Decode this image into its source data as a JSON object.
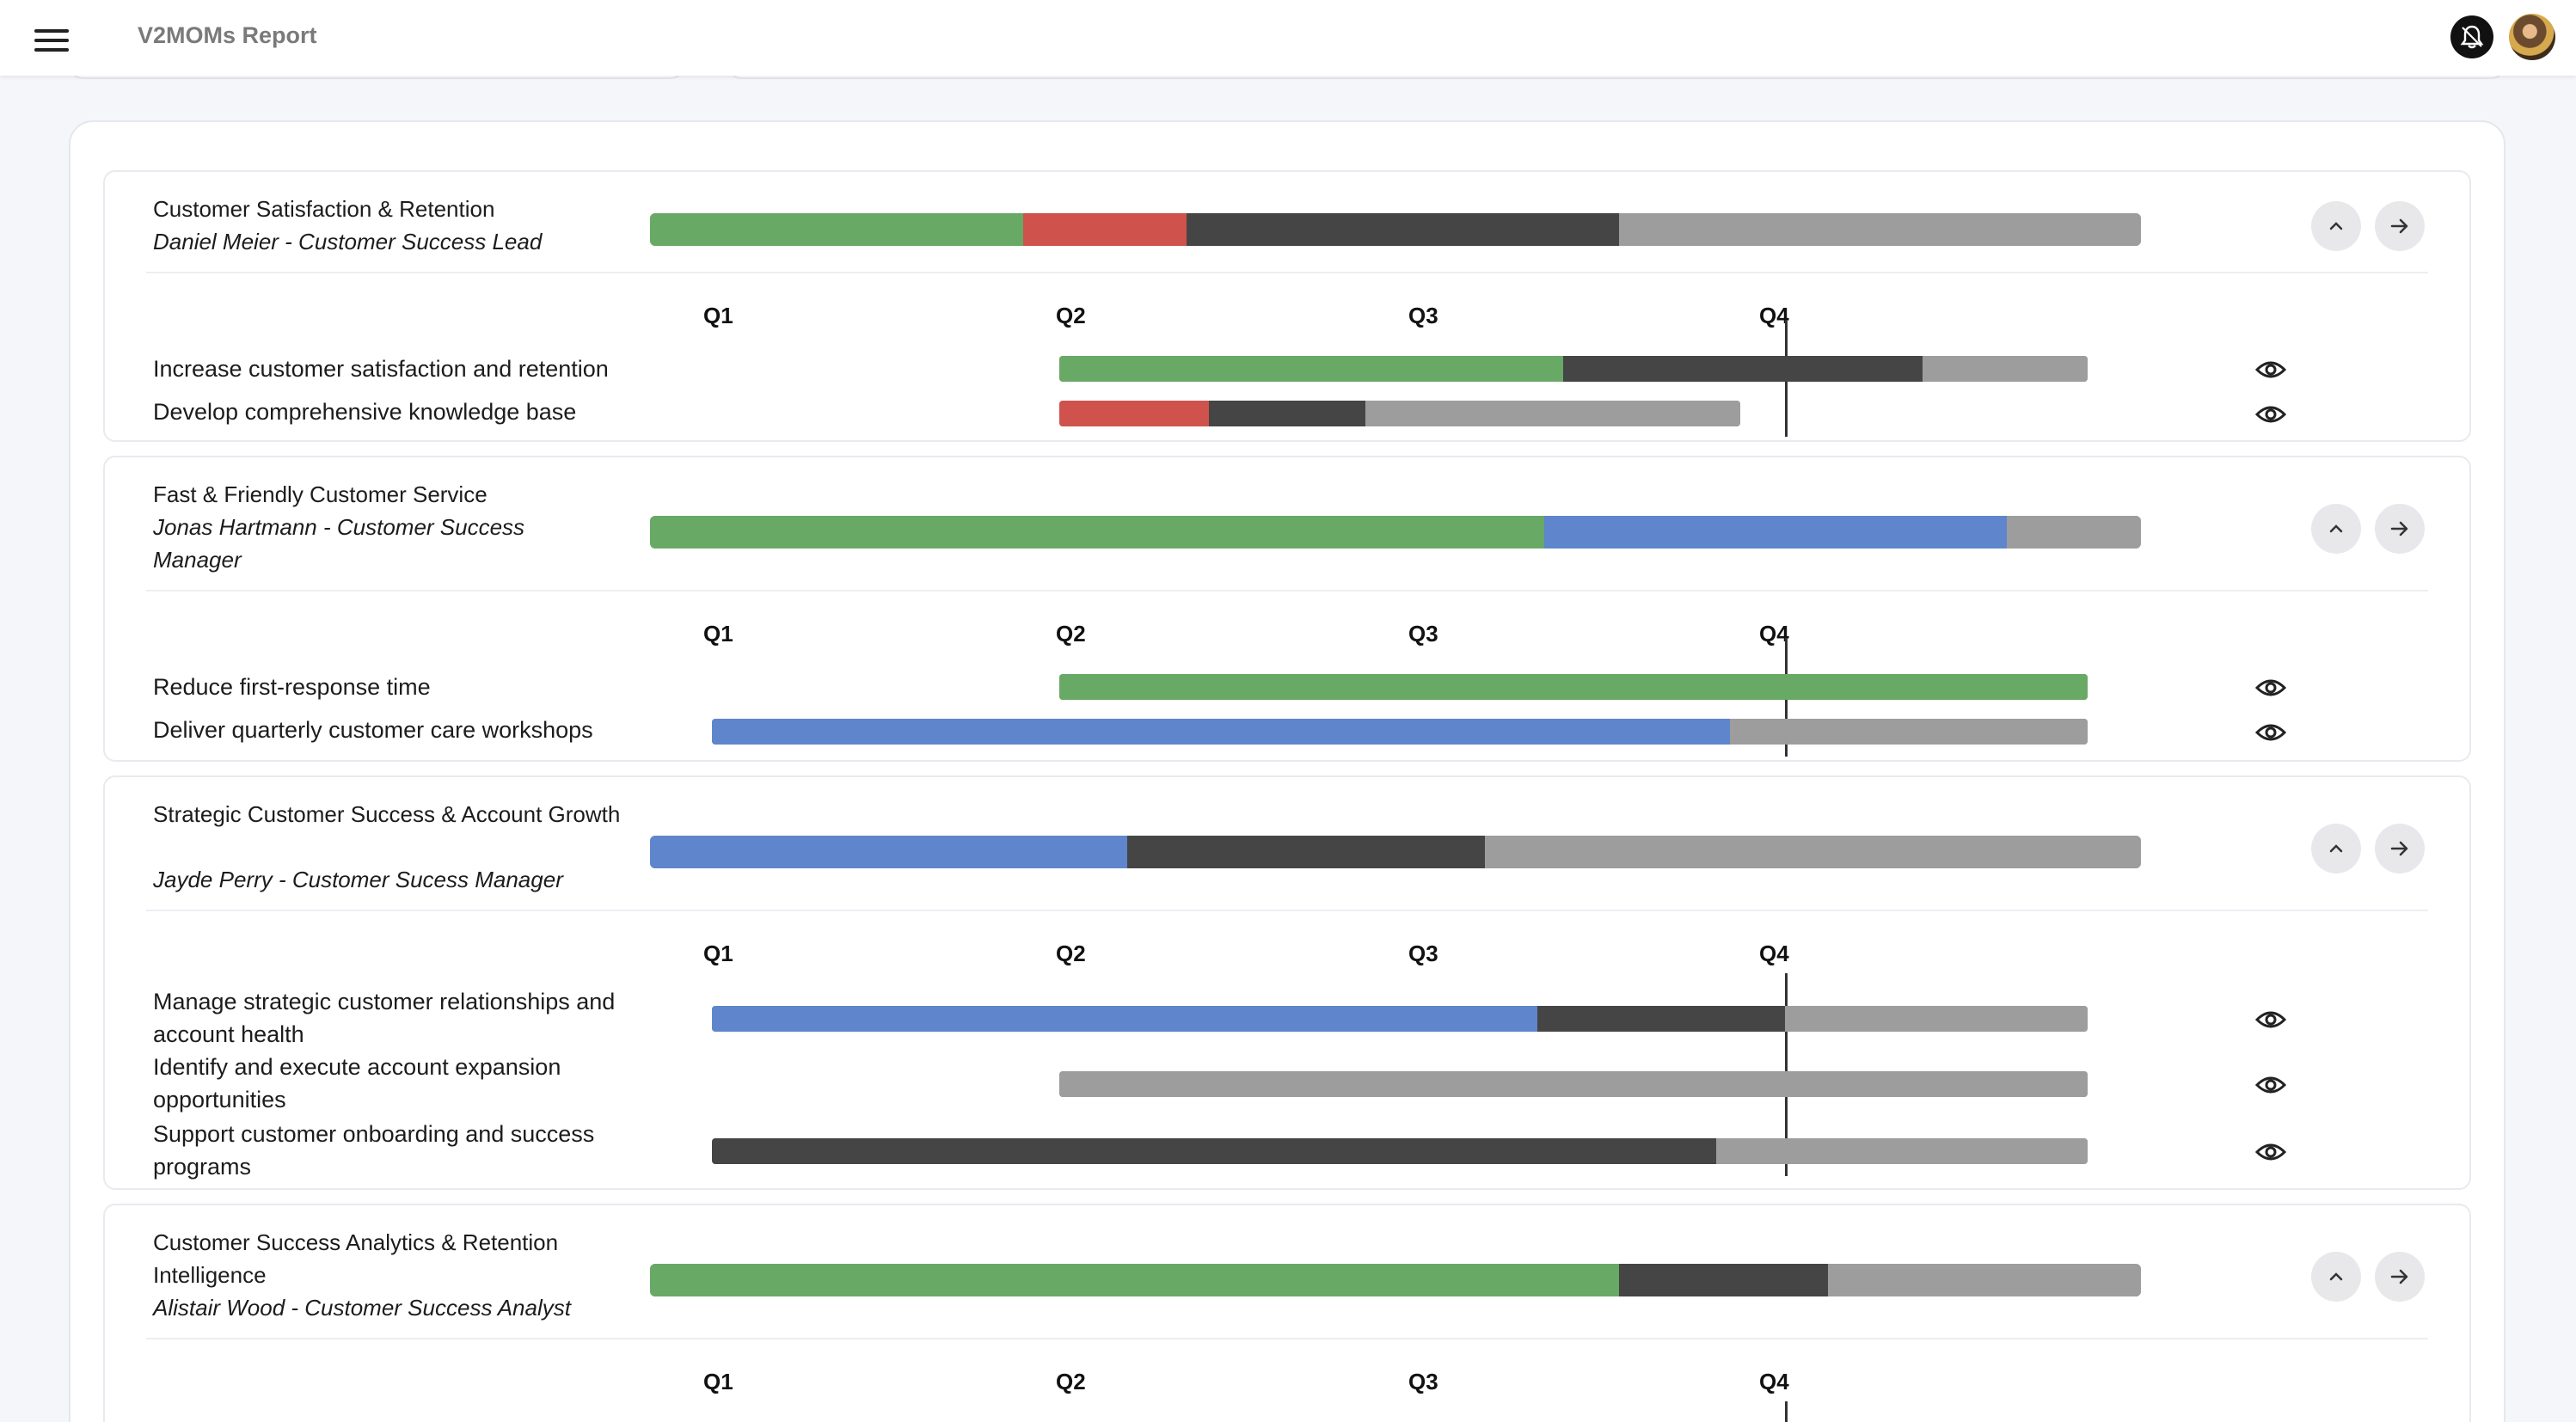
{
  "header": {
    "title": "V2MOMs Report",
    "menu_icon": "hamburger-menu-icon",
    "notification_icon": "bell-icon",
    "avatar_icon": "user-avatar"
  },
  "colors": {
    "green": "#68a966",
    "red": "#cf524c",
    "blue": "#5f85cc",
    "dark": "#454545",
    "grey": "#9d9d9d"
  },
  "quarters": [
    "Q1",
    "Q2",
    "Q3",
    "Q4"
  ],
  "cards": [
    {
      "title": "Customer Satisfaction & Retention",
      "owner": "Daniel Meier - Customer Success Lead",
      "progress": [
        {
          "status": "green",
          "fraction": 0.25
        },
        {
          "status": "red",
          "fraction": 0.11
        },
        {
          "status": "dark",
          "fraction": 0.29
        },
        {
          "status": "grey",
          "fraction": 0.35
        }
      ],
      "items": [
        {
          "label": "Increase customer satisfaction and retention",
          "start": 0.25,
          "end": 0.99,
          "progress": [
            {
              "status": "green",
              "fraction": 0.49
            },
            {
              "status": "dark",
              "fraction": 0.35
            },
            {
              "status": "grey",
              "fraction": 0.16
            }
          ]
        },
        {
          "label": "Develop comprehensive knowledge base",
          "start": 0.25,
          "end": 0.74,
          "progress": [
            {
              "status": "red",
              "fraction": 0.22
            },
            {
              "status": "dark",
              "fraction": 0.23
            },
            {
              "status": "grey",
              "fraction": 0.55
            }
          ]
        }
      ]
    },
    {
      "title": "Fast & Friendly Customer Service",
      "owner": "Jonas Hartmann - Customer Success Manager",
      "progress": [
        {
          "status": "green",
          "fraction": 0.6
        },
        {
          "status": "blue",
          "fraction": 0.31
        },
        {
          "status": "grey",
          "fraction": 0.09
        }
      ],
      "items": [
        {
          "label": "Reduce first-response time",
          "start": 0.25,
          "end": 0.99,
          "progress": [
            {
              "status": "green",
              "fraction": 1.0
            }
          ]
        },
        {
          "label": "Deliver quarterly customer care workshops",
          "start": 0.0,
          "end": 0.99,
          "progress": [
            {
              "status": "blue",
              "fraction": 0.74
            },
            {
              "status": "grey",
              "fraction": 0.26
            }
          ]
        }
      ]
    },
    {
      "title": "Strategic Customer Success & Account Growth",
      "owner": "Jayde Perry - Customer Sucess Manager",
      "progress": [
        {
          "status": "blue",
          "fraction": 0.32
        },
        {
          "status": "dark",
          "fraction": 0.24
        },
        {
          "status": "grey",
          "fraction": 0.44
        }
      ],
      "items": [
        {
          "label": "Manage strategic customer relationships and account health",
          "start": 0.0,
          "end": 0.99,
          "progress": [
            {
              "status": "blue",
              "fraction": 0.6
            },
            {
              "status": "dark",
              "fraction": 0.18
            },
            {
              "status": "grey",
              "fraction": 0.22
            }
          ]
        },
        {
          "label": "Identify and execute account expansion opportunities",
          "start": 0.25,
          "end": 0.99,
          "progress": [
            {
              "status": "grey",
              "fraction": 1.0
            }
          ]
        },
        {
          "label": "Support customer onboarding and success programs",
          "start": 0.0,
          "end": 0.99,
          "progress": [
            {
              "status": "dark",
              "fraction": 0.73
            },
            {
              "status": "grey",
              "fraction": 0.27
            }
          ]
        }
      ]
    },
    {
      "title": "Customer Success Analytics & Retention Intelligence",
      "owner": "Alistair Wood - Customer Success Analyst",
      "progress": [
        {
          "status": "green",
          "fraction": 0.65
        },
        {
          "status": "dark",
          "fraction": 0.14
        },
        {
          "status": "grey",
          "fraction": 0.21
        }
      ],
      "items": []
    }
  ]
}
